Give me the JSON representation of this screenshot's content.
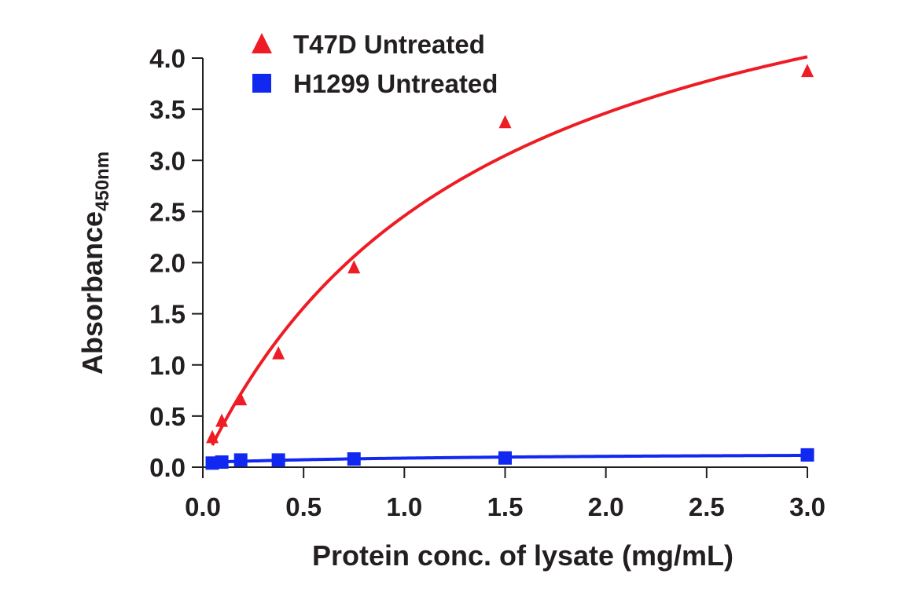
{
  "chart_data": {
    "type": "scatter",
    "title": "",
    "xlabel": "Protein conc. of lysate (mg/mL)",
    "ylabel": "Absorbance",
    "ylabel_subscript": "450nm",
    "xlim": [
      0,
      3.0
    ],
    "ylim": [
      0,
      4.0
    ],
    "x_ticks": [
      "0.0",
      "0.5",
      "1.0",
      "1.5",
      "2.0",
      "2.5",
      "3.0"
    ],
    "y_ticks": [
      "0.0",
      "0.5",
      "1.0",
      "1.5",
      "2.0",
      "2.5",
      "3.0",
      "3.5",
      "4.0"
    ],
    "legend_position": "top-left",
    "series": [
      {
        "name": "T47D Untreated",
        "marker": "triangle",
        "color": "#ee1c24",
        "x": [
          0.047,
          0.094,
          0.188,
          0.375,
          0.75,
          1.5,
          3.0
        ],
        "y": [
          0.29,
          0.45,
          0.66,
          1.11,
          1.95,
          3.37,
          3.87
        ],
        "fit_curve": true
      },
      {
        "name": "H1299 Untreated",
        "marker": "square",
        "color": "#1028f0",
        "x": [
          0.047,
          0.094,
          0.188,
          0.375,
          0.75,
          1.5,
          3.0
        ],
        "y": [
          0.04,
          0.05,
          0.07,
          0.07,
          0.08,
          0.09,
          0.12
        ],
        "fit_curve": true
      }
    ]
  }
}
